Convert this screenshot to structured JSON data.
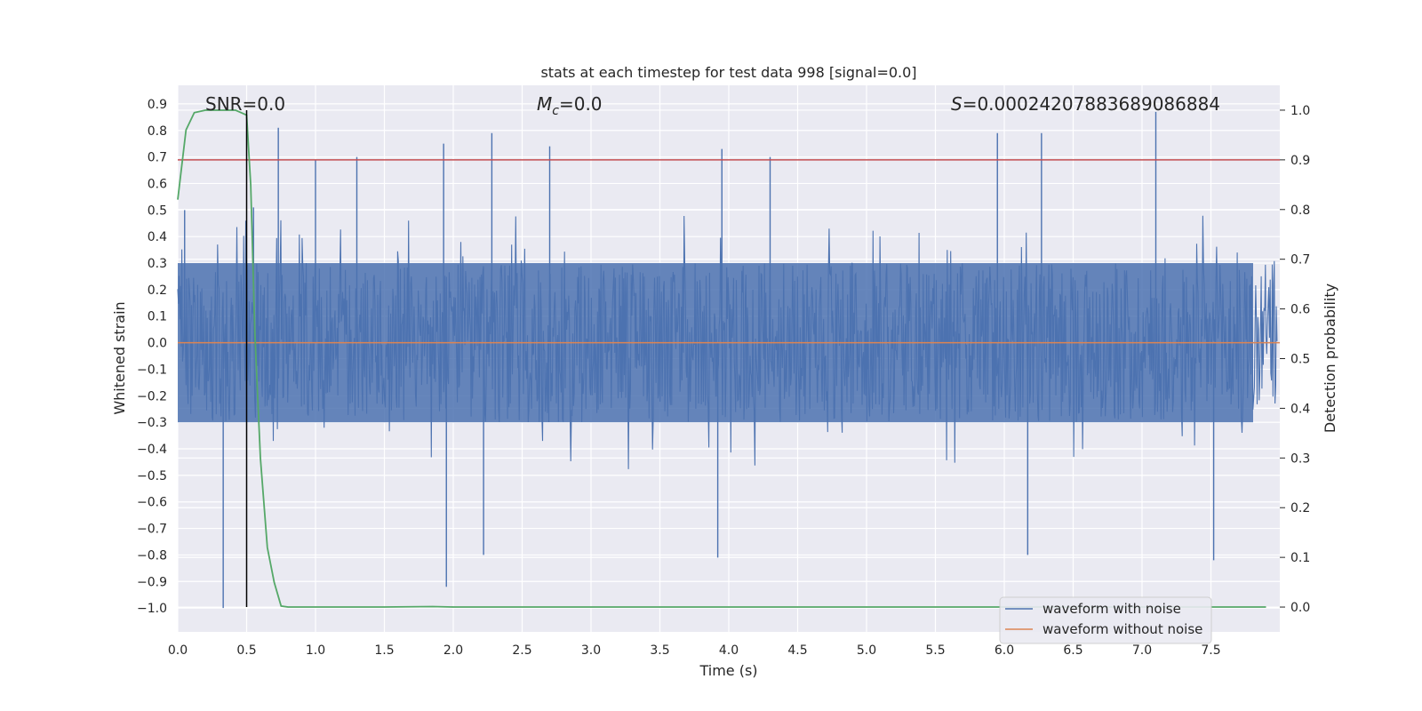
{
  "chart_data": {
    "type": "line",
    "title": "stats at each timestep for test data 998 [signal=0.0]",
    "xlabel": "Time (s)",
    "ylabel": "Whitened strain",
    "y2label": "Detection probability",
    "xlim": [
      0.0,
      8.0
    ],
    "ylim": [
      -1.09,
      0.97
    ],
    "y2lim": [
      -0.05,
      1.05
    ],
    "xticks": [
      "0.0",
      "0.5",
      "1.0",
      "1.5",
      "2.0",
      "2.5",
      "3.0",
      "3.5",
      "4.0",
      "4.5",
      "5.0",
      "5.5",
      "6.0",
      "6.5",
      "7.0",
      "7.5"
    ],
    "yticks": [
      "0.9",
      "0.8",
      "0.7",
      "0.6",
      "0.5",
      "0.4",
      "0.3",
      "0.2",
      "0.1",
      "0.0",
      "−0.1",
      "−0.2",
      "−0.3",
      "−0.4",
      "−0.5",
      "−0.6",
      "−0.7",
      "−0.8",
      "−0.9",
      "−1.0"
    ],
    "y2ticks": [
      "1.0",
      "0.9",
      "0.8",
      "0.7",
      "0.6",
      "0.5",
      "0.4",
      "0.3",
      "0.2",
      "0.1",
      "0.0"
    ],
    "annotations": {
      "snr": "SNR=0.0",
      "mc_symbol": "M",
      "mc_sub": "c",
      "mc_value": "=0.0",
      "s_symbol": "S",
      "s_value": "=0.00024207883689086884"
    },
    "threshold": {
      "value": 0.9,
      "axis": "right",
      "color": "#c44e52"
    },
    "marker_time": 0.5,
    "series": [
      {
        "name": "waveform with noise",
        "color": "#4c72b0",
        "note": "dense noise trace; sample spikes below, amplitude envelope approx ±0.3",
        "envelope": [
          -0.3,
          0.3
        ],
        "spikes": [
          {
            "x": 0.05,
            "y": 0.5
          },
          {
            "x": 0.33,
            "y": -1.0
          },
          {
            "x": 0.55,
            "y": 0.51
          },
          {
            "x": 0.73,
            "y": 0.81
          },
          {
            "x": 1.0,
            "y": 0.69
          },
          {
            "x": 1.3,
            "y": 0.7
          },
          {
            "x": 1.93,
            "y": 0.75
          },
          {
            "x": 1.95,
            "y": -0.92
          },
          {
            "x": 2.22,
            "y": -0.8
          },
          {
            "x": 2.28,
            "y": 0.79
          },
          {
            "x": 2.7,
            "y": 0.74
          },
          {
            "x": 3.95,
            "y": 0.73
          },
          {
            "x": 3.92,
            "y": -0.81
          },
          {
            "x": 4.3,
            "y": 0.7
          },
          {
            "x": 5.01,
            "y": -0.1
          },
          {
            "x": 5.95,
            "y": 0.79
          },
          {
            "x": 6.17,
            "y": -0.8
          },
          {
            "x": 6.27,
            "y": 0.79
          },
          {
            "x": 7.1,
            "y": 0.87
          },
          {
            "x": 7.52,
            "y": -0.82
          }
        ]
      },
      {
        "name": "waveform without noise",
        "color": "#dd8452",
        "x": [
          0.0,
          8.0
        ],
        "y": [
          0.0,
          0.0
        ]
      },
      {
        "name": "detection probability",
        "color": "#55a868",
        "axis": "right",
        "x": [
          0.0,
          0.06,
          0.12,
          0.2,
          0.3,
          0.42,
          0.5,
          0.53,
          0.56,
          0.6,
          0.65,
          0.7,
          0.75,
          0.8,
          1.5,
          1.85,
          2.0,
          7.9
        ],
        "y": [
          0.82,
          0.96,
          0.995,
          1.0,
          1.0,
          1.0,
          0.99,
          0.85,
          0.55,
          0.3,
          0.12,
          0.05,
          0.002,
          0.0,
          0.0,
          0.001,
          0.0,
          0.0
        ]
      }
    ],
    "legend": [
      "waveform with noise",
      "waveform without noise"
    ]
  }
}
